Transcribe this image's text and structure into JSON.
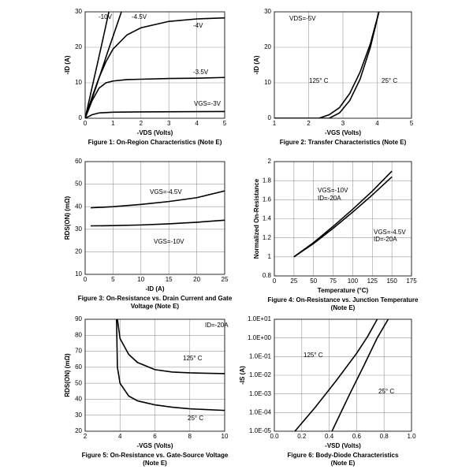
{
  "chart_data": [
    {
      "type": "line",
      "title": [
        "Figure 1: On-Region Characteristics (Note E)"
      ],
      "xlabel": "-VDS (Volts)",
      "ylabel": "-ID (A)",
      "xlim": [
        0,
        5
      ],
      "xticks": [
        0,
        1,
        2,
        3,
        4,
        5
      ],
      "ylim": [
        0,
        30
      ],
      "yticks": [
        0,
        10,
        20,
        30
      ],
      "grid": true,
      "color": "#000000",
      "annotations": [
        "-10V",
        "-4.5V",
        "-4V",
        "-3.5V",
        "VGS=-3V"
      ],
      "series": [
        {
          "x": [
            0,
            0.3,
            0.6,
            0.85
          ],
          "values": [
            0,
            10.5,
            21,
            30
          ]
        },
        {
          "x": [
            0,
            0.4,
            0.8,
            1.3
          ],
          "values": [
            0,
            9,
            18.5,
            30
          ]
        },
        {
          "x": [
            0,
            0.25,
            0.5,
            0.75,
            1,
            1.5,
            2,
            3,
            4,
            5
          ],
          "values": [
            0,
            6,
            11.5,
            16,
            19.5,
            23.5,
            25.5,
            27.3,
            28,
            28.3
          ]
        },
        {
          "x": [
            0,
            0.25,
            0.5,
            0.75,
            1,
            1.5,
            2,
            3,
            4,
            5
          ],
          "values": [
            0,
            5,
            8.5,
            10,
            10.5,
            10.9,
            11,
            11.2,
            11.3,
            11.5
          ]
        },
        {
          "x": [
            0,
            0.25,
            0.5,
            1,
            2,
            5
          ],
          "values": [
            0,
            1,
            1.5,
            1.7,
            1.8,
            1.9
          ]
        }
      ]
    },
    {
      "type": "line",
      "title": [
        "Figure 2: Transfer Characteristics (Note E)"
      ],
      "xlabel": "-VGS (Volts)",
      "ylabel": "-ID (A)",
      "xlim": [
        1,
        5
      ],
      "xticks": [
        1,
        2,
        3,
        4,
        5
      ],
      "ylim": [
        0,
        30
      ],
      "yticks": [
        0,
        10,
        20,
        30
      ],
      "grid": true,
      "color": "#000000",
      "annotations": [
        "VDS=-5V",
        "125° C",
        "25° C"
      ],
      "series": [
        {
          "x": [
            1,
            2.3,
            2.6,
            2.9,
            3.2,
            3.5,
            3.8,
            4.05
          ],
          "values": [
            0,
            0,
            1,
            3,
            7,
            13,
            21,
            30
          ]
        },
        {
          "x": [
            1,
            2.6,
            2.9,
            3.2,
            3.5,
            3.8,
            4.05
          ],
          "values": [
            0,
            0,
            1.5,
            5,
            11,
            20,
            30
          ]
        }
      ]
    },
    {
      "type": "line",
      "title": [
        "Figure 3: On-Resistance vs. Drain Current and Gate",
        "Voltage (Note E)"
      ],
      "xlabel": "-ID (A)",
      "ylabel": "RDS(ON) (mΩ)",
      "xlim": [
        0,
        25
      ],
      "xticks": [
        0,
        5,
        10,
        15,
        20,
        25
      ],
      "ylim": [
        10,
        60
      ],
      "yticks": [
        10,
        20,
        30,
        40,
        50,
        60
      ],
      "grid": true,
      "color": "#000000",
      "annotations": [
        "VGS=-4.5V",
        "VGS=-10V"
      ],
      "series": [
        {
          "x": [
            1,
            5,
            10,
            15,
            20,
            25
          ],
          "values": [
            39.5,
            40,
            41,
            42.3,
            44,
            47
          ]
        },
        {
          "x": [
            1,
            5,
            10,
            15,
            20,
            25
          ],
          "values": [
            31.5,
            31.6,
            31.9,
            32.4,
            33.1,
            34
          ]
        }
      ]
    },
    {
      "type": "line",
      "title": [
        "Figure 4: On-Resistance vs. Junction Temperature",
        "(Note E)"
      ],
      "xlabel": "Temperature (°C)",
      "ylabel": "Normalized On-Resistance",
      "xlim": [
        0,
        175
      ],
      "xticks": [
        0,
        25,
        50,
        75,
        100,
        125,
        150,
        175
      ],
      "ylim": [
        0.8,
        2
      ],
      "yticks": [
        0.8,
        1,
        1.2,
        1.4,
        1.6,
        1.8,
        2
      ],
      "grid": true,
      "color": "#000000",
      "annotations": [
        "VGS=-10V",
        "ID=-20A",
        "VGS=-4.5V",
        "ID=-20A"
      ],
      "series": [
        {
          "x": [
            25,
            50,
            75,
            100,
            125,
            150
          ],
          "values": [
            1,
            1.14,
            1.3,
            1.47,
            1.65,
            1.84
          ]
        },
        {
          "x": [
            25,
            50,
            75,
            100,
            125,
            150
          ],
          "values": [
            1,
            1.15,
            1.32,
            1.5,
            1.69,
            1.9
          ]
        }
      ]
    },
    {
      "type": "line",
      "title": [
        "Figure 5: On-Resistance vs. Gate-Source Voltage",
        "(Note E)"
      ],
      "xlabel": "-VGS (Volts)",
      "ylabel": "RDS(ON) (mΩ)",
      "xlim": [
        2,
        10
      ],
      "xticks": [
        2,
        4,
        6,
        8,
        10
      ],
      "ylim": [
        20,
        90
      ],
      "yticks": [
        20,
        30,
        40,
        50,
        60,
        70,
        80,
        90
      ],
      "grid": true,
      "color": "#000000",
      "annotations": [
        "ID=-20A",
        "125° C",
        "25° C"
      ],
      "series": [
        {
          "x": [
            3.85,
            4,
            4.5,
            5,
            6,
            7,
            8,
            10
          ],
          "values": [
            90,
            78,
            68,
            63,
            58.5,
            57,
            56.5,
            56
          ]
        },
        {
          "x": [
            3.8,
            3.85,
            4,
            4.5,
            5,
            6,
            7,
            8,
            10
          ],
          "values": [
            90,
            60,
            50,
            42,
            39,
            36.5,
            35,
            34,
            33
          ]
        }
      ]
    },
    {
      "type": "line",
      "title": [
        "Figure 6: Body-Diode Characteristics",
        "(Note E)"
      ],
      "xlabel": "-VSD (Volts)",
      "ylabel": "-IS (A)",
      "log": true,
      "xlim": [
        0,
        1
      ],
      "xticks": [
        {
          "value": 0,
          "label": "0.0"
        },
        0.2,
        0.4,
        0.6,
        0.8,
        {
          "value": 1,
          "label": "1.0"
        }
      ],
      "ylim": [
        1e-05,
        10
      ],
      "yticks": [
        {
          "value": 1e-05,
          "label": "1.0E-05"
        },
        {
          "value": 0.0001,
          "label": "1.0E-04"
        },
        {
          "value": 0.001,
          "label": "1.0E-03"
        },
        {
          "value": 0.01,
          "label": "1.0E-02"
        },
        {
          "value": 0.1,
          "label": "1.0E-01"
        },
        {
          "value": 1,
          "label": "1.0E+00"
        },
        {
          "value": 10,
          "label": "1.0E+01"
        }
      ],
      "grid": true,
      "color": "#000000",
      "annotations": [
        "125° C",
        "25° C"
      ],
      "series": [
        {
          "x": [
            0.15,
            0.3,
            0.45,
            0.6,
            0.68,
            0.75
          ],
          "values": [
            1e-05,
            0.0002,
            0.005,
            0.15,
            1.2,
            10
          ]
        },
        {
          "x": [
            0.42,
            0.55,
            0.65,
            0.75,
            0.83
          ],
          "values": [
            1e-05,
            0.001,
            0.03,
            1,
            10
          ]
        }
      ]
    }
  ]
}
